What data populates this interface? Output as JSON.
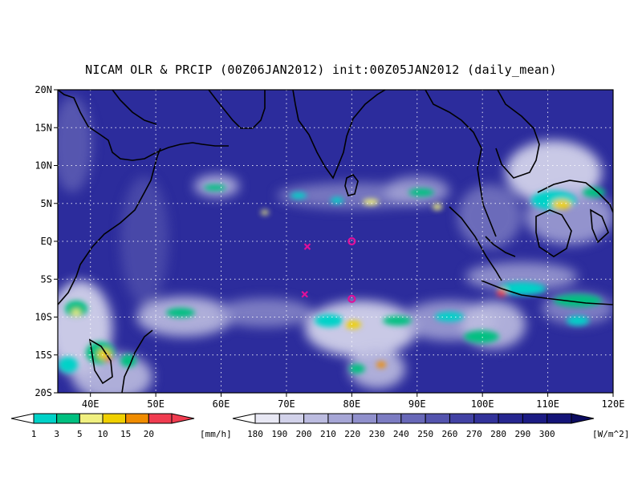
{
  "title": "NICAM OLR & PRCIP (00Z06JAN2012) init:00Z05JAN2012 (daily_mean)",
  "map": {
    "lon_range": [
      35,
      120
    ],
    "lat_range": [
      -20,
      20
    ],
    "lat_labels": [
      "20N",
      "15N",
      "10N",
      "5N",
      "EQ",
      "5S",
      "10S",
      "15S",
      "20S"
    ],
    "lon_labels": [
      "40E",
      "50E",
      "60E",
      "70E",
      "80E",
      "90E",
      "100E",
      "110E",
      "120E"
    ],
    "background_color": "#2c2c9c",
    "markers": [
      {
        "symbol": "x",
        "lon": 73.2,
        "lat": -0.7,
        "color": "#e0109a"
      },
      {
        "symbol": "o",
        "lon": 80.0,
        "lat": 0.0,
        "color": "#e0109a"
      },
      {
        "symbol": "x",
        "lon": 72.8,
        "lat": -7.0,
        "color": "#e0109a"
      },
      {
        "symbol": "o",
        "lon": 80.0,
        "lat": -7.6,
        "color": "#e0109a"
      }
    ]
  },
  "precip_colorbar": {
    "unit": "[mm/h]",
    "labels": [
      "1",
      "3",
      "5",
      "10",
      "15",
      "20"
    ],
    "colors": [
      "#00d2c8",
      "#00c080",
      "#f0f080",
      "#f0d000",
      "#f08c00",
      "#f03c50"
    ]
  },
  "olr_colorbar": {
    "unit": "[W/m^2]",
    "labels": [
      "180",
      "190",
      "200",
      "210",
      "220",
      "230",
      "240",
      "250",
      "260",
      "270",
      "280",
      "290",
      "300"
    ],
    "colors": [
      "#e8e8f4",
      "#d2d2ea",
      "#bcbce0",
      "#a6a6d6",
      "#9090cc",
      "#7c7cc2",
      "#6868b8",
      "#5454ae",
      "#4242a4",
      "#32329a",
      "#262690",
      "#1c1c84",
      "#141478"
    ]
  }
}
